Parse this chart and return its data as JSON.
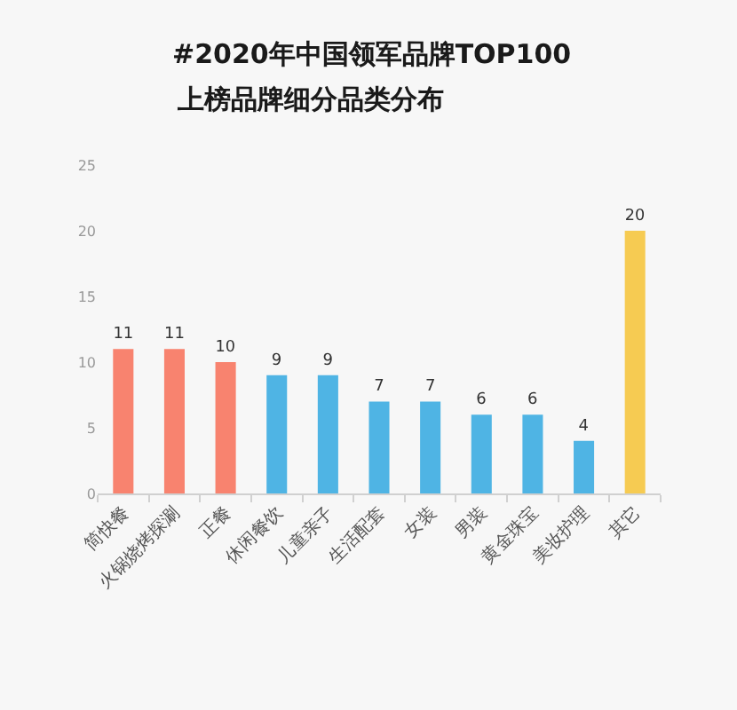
{
  "chart_data": {
    "type": "bar",
    "title": "#2020年中国领军品牌TOP100",
    "subtitle": "上榜品牌细分品类分布",
    "categories": [
      "简快餐",
      "火锅烧烤探涮",
      "正餐",
      "休闲餐饮",
      "儿童亲子",
      "生活配套",
      "女装",
      "男装",
      "黄金珠宝",
      "美妆护理",
      "其它"
    ],
    "values": [
      11,
      11,
      10,
      9,
      9,
      7,
      7,
      6,
      6,
      4,
      20
    ],
    "colors": [
      "#f8836f",
      "#f8836f",
      "#f8836f",
      "#4fb4e4",
      "#4fb4e4",
      "#4fb4e4",
      "#4fb4e4",
      "#4fb4e4",
      "#4fb4e4",
      "#4fb4e4",
      "#f6cb52"
    ],
    "ylim": [
      0,
      25
    ],
    "yticks": [
      0,
      5,
      10,
      15,
      20,
      25
    ],
    "data_labels": true
  }
}
